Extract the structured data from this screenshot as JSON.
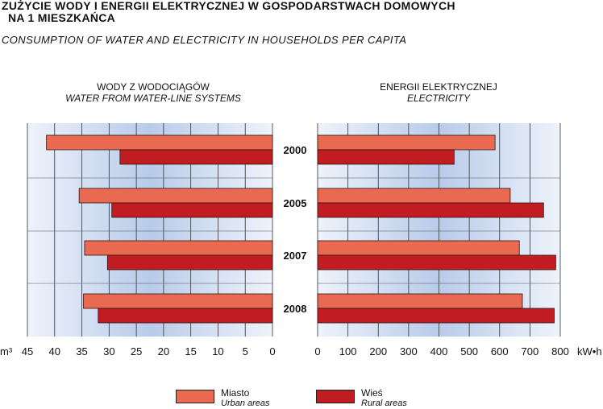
{
  "title": {
    "line1": "ZUŻYCIE WODY I ENERGII ELEKTRYCZNEJ W GOSPODARSTWACH DOMOWYCH",
    "line2": "NA 1 MIESZKAŃCA",
    "english": "CONSUMPTION OF WATER AND ELECTRICITY IN HOUSEHOLDS PER CAPITA"
  },
  "colors": {
    "urban": "#e96a50",
    "rural": "#c01c22",
    "panel_edge": "#eef3fb",
    "panel_center": "#b8cbe9"
  },
  "legend": {
    "urban_pl": "Miasto",
    "urban_en": "Urban areas",
    "rural_pl": "Wieś",
    "rural_en": "Rural areas"
  },
  "chart_data": [
    {
      "type": "bar",
      "orientation": "horizontal",
      "direction": "reversed",
      "title": "WODY Z WODOCIĄGÓW",
      "subtitle": "WATER FROM WATER-LINE SYSTEMS",
      "unit_label": "m³",
      "categories": [
        "2000",
        "2005",
        "2007",
        "2008"
      ],
      "series": [
        {
          "name": "Miasto",
          "values": [
            41.5,
            35.5,
            34.5,
            34.7
          ]
        },
        {
          "name": "Wieś",
          "values": [
            28.0,
            29.5,
            30.3,
            32.0
          ]
        }
      ],
      "xlim": [
        0,
        45
      ],
      "ticks": [
        "45",
        "40",
        "35",
        "30",
        "25",
        "20",
        "15",
        "10",
        "5",
        "0"
      ],
      "grid": true
    },
    {
      "type": "bar",
      "orientation": "horizontal",
      "title": "ENERGII ELEKTRYCZNEJ",
      "subtitle": "ELECTRICITY",
      "unit_label": "kW•h",
      "categories": [
        "2000",
        "2005",
        "2007",
        "2008"
      ],
      "series": [
        {
          "name": "Miasto",
          "values": [
            585,
            635,
            665,
            675
          ]
        },
        {
          "name": "Wieś",
          "values": [
            450,
            745,
            785,
            780
          ]
        }
      ],
      "xlim": [
        0,
        800
      ],
      "ticks": [
        "0",
        "100",
        "200",
        "300",
        "400",
        "500",
        "600",
        "700",
        "800"
      ],
      "grid": true
    }
  ]
}
